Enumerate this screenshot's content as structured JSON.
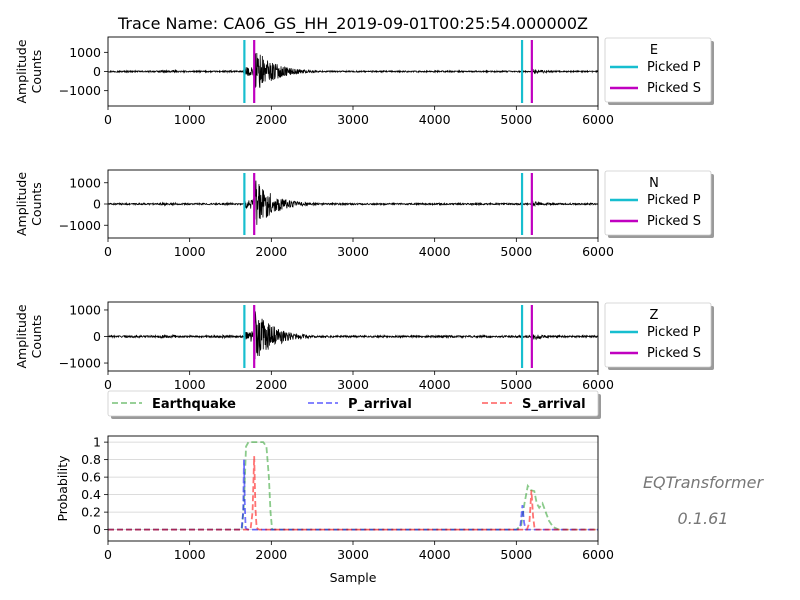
{
  "chart_data": [
    {
      "type": "line",
      "title": "Trace Name: CA06_GS_HH_2019-09-01T00:25:54.000000Z",
      "ylabel_lines": [
        "Amplitude",
        "Counts"
      ],
      "xlim": [
        0,
        6000
      ],
      "ylim": [
        -1800,
        1800
      ],
      "xticks": [
        0,
        1000,
        2000,
        3000,
        4000,
        5000,
        6000
      ],
      "yticks": [
        1000,
        0,
        -1000
      ],
      "event_onset": 1790,
      "events": [
        {
          "onset": 1790,
          "peak": 1300
        },
        {
          "onset": 5190,
          "peak": 170
        }
      ],
      "picks": [
        {
          "name": "Picked P",
          "x": 1670,
          "color": "#17becf"
        },
        {
          "name": "Picked S",
          "x": 1790,
          "color": "#c000c0"
        },
        {
          "name": "Picked P",
          "x": 5070,
          "color": "#17becf"
        },
        {
          "name": "Picked S",
          "x": 5190,
          "color": "#c000c0"
        }
      ],
      "legend": {
        "title": "E",
        "entries": [
          {
            "label": "Picked P",
            "color": "#17becf"
          },
          {
            "label": "Picked S",
            "color": "#c000c0"
          }
        ]
      }
    },
    {
      "type": "line",
      "ylabel_lines": [
        "Amplitude",
        "Counts"
      ],
      "xlim": [
        0,
        6000
      ],
      "ylim": [
        -1600,
        1600
      ],
      "xticks": [
        0,
        1000,
        2000,
        3000,
        4000,
        5000,
        6000
      ],
      "yticks": [
        1000,
        0,
        -1000
      ],
      "events": [
        {
          "onset": 1790,
          "peak": 1250
        },
        {
          "onset": 5190,
          "peak": 160
        }
      ],
      "picks": [
        {
          "name": "Picked P",
          "x": 1670,
          "color": "#17becf"
        },
        {
          "name": "Picked S",
          "x": 1790,
          "color": "#c000c0"
        },
        {
          "name": "Picked P",
          "x": 5070,
          "color": "#17becf"
        },
        {
          "name": "Picked S",
          "x": 5190,
          "color": "#c000c0"
        }
      ],
      "legend": {
        "title": "N",
        "entries": [
          {
            "label": "Picked P",
            "color": "#17becf"
          },
          {
            "label": "Picked S",
            "color": "#c000c0"
          }
        ]
      }
    },
    {
      "type": "line",
      "ylabel_lines": [
        "Amplitude",
        "Counts"
      ],
      "xlim": [
        0,
        6000
      ],
      "ylim": [
        -1300,
        1300
      ],
      "xticks": [
        0,
        1000,
        2000,
        3000,
        4000,
        5000,
        6000
      ],
      "yticks": [
        1000,
        0,
        -1000
      ],
      "events": [
        {
          "onset": 1790,
          "peak": 1100
        },
        {
          "onset": 5190,
          "peak": 150
        }
      ],
      "picks": [
        {
          "name": "Picked P",
          "x": 1670,
          "color": "#17becf"
        },
        {
          "name": "Picked S",
          "x": 1790,
          "color": "#c000c0"
        },
        {
          "name": "Picked P",
          "x": 5070,
          "color": "#17becf"
        },
        {
          "name": "Picked S",
          "x": 5190,
          "color": "#c000c0"
        }
      ],
      "legend": {
        "title": "Z",
        "entries": [
          {
            "label": "Picked P",
            "color": "#17becf"
          },
          {
            "label": "Picked S",
            "color": "#c000c0"
          }
        ]
      }
    },
    {
      "type": "line",
      "xlabel": "Sample",
      "ylabel": "Probability",
      "xlim": [
        0,
        6000
      ],
      "ylim": [
        -0.13,
        1.07
      ],
      "xticks": [
        0,
        1000,
        2000,
        3000,
        4000,
        5000,
        6000
      ],
      "yticks": [
        1.0,
        0.8,
        0.6,
        0.4,
        0.2,
        0.0
      ],
      "grid": "horizontal",
      "legend": {
        "position": "above",
        "entries": [
          {
            "label": "Earthquake",
            "color": "#2ca02c"
          },
          {
            "label": "P_arrival",
            "color": "#0000ff"
          },
          {
            "label": "S_arrival",
            "color": "#ff0000"
          }
        ]
      },
      "series": [
        {
          "name": "Earthquake",
          "color": "#2ca02c",
          "x": [
            0,
            1640,
            1665,
            1690,
            1720,
            1900,
            1940,
            1970,
            1990,
            2010,
            5000,
            5060,
            5100,
            5140,
            5180,
            5220,
            5250,
            5280,
            5320,
            5360,
            5400,
            5450,
            5520,
            6000
          ],
          "values": [
            0,
            0,
            0.3,
            0.95,
            1.0,
            1.0,
            0.95,
            0.6,
            0.2,
            0,
            0,
            0.05,
            0.3,
            0.5,
            0.45,
            0.44,
            0.3,
            0.25,
            0.3,
            0.2,
            0.1,
            0.03,
            0,
            0
          ]
        },
        {
          "name": "P_arrival",
          "color": "#0000ff",
          "x": [
            0,
            1635,
            1655,
            1665,
            1675,
            1685,
            1710,
            5020,
            5050,
            5075,
            5095,
            5115,
            6000
          ],
          "values": [
            0,
            0,
            0.2,
            0.8,
            0.3,
            0.02,
            0,
            0,
            0.05,
            0.28,
            0.08,
            0,
            0
          ]
        },
        {
          "name": "S_arrival",
          "color": "#ff0000",
          "x": [
            0,
            1745,
            1770,
            1790,
            1805,
            1820,
            1850,
            5130,
            5160,
            5185,
            5205,
            5225,
            6000
          ],
          "values": [
            0,
            0,
            0.2,
            0.84,
            0.25,
            0.02,
            0,
            0,
            0.08,
            0.45,
            0.15,
            0,
            0
          ]
        }
      ]
    }
  ],
  "watermark": {
    "name": "EQTransformer",
    "version": "0.1.61"
  }
}
